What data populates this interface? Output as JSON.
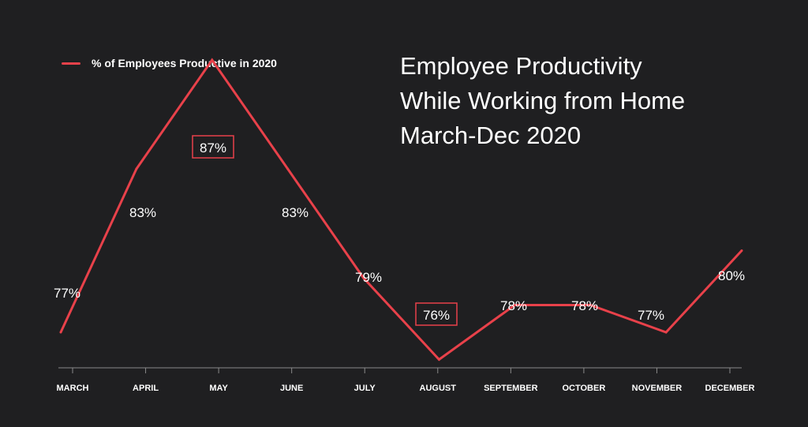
{
  "colors": {
    "background": "#1f1f21",
    "line": "#e8414a",
    "text": "#ffffff",
    "axis": "#8a8a8a"
  },
  "chart_data": {
    "type": "line",
    "title_lines": [
      "Employee Productivity",
      "While Working from Home",
      "March-Dec 2020"
    ],
    "categories": [
      "MARCH",
      "APRIL",
      "MAY",
      "JUNE",
      "JULY",
      "AUGUST",
      "SEPTEMBER",
      "OCTOBER",
      "NOVEMBER",
      "DECEMBER"
    ],
    "series": [
      {
        "name": "% of Employees Productive in 2020",
        "values": [
          77,
          83,
          87,
          83,
          79,
          76,
          78,
          78,
          77,
          80
        ],
        "labels": [
          "77%",
          "83%",
          "87%",
          "83%",
          "79%",
          "76%",
          "78%",
          "78%",
          "77%",
          "80%"
        ],
        "highlighted": [
          "MAY",
          "AUGUST"
        ]
      }
    ],
    "xlabel": "",
    "ylabel": "",
    "ylim": [
      70,
      90
    ],
    "grid": false,
    "legend_position": "top-left"
  }
}
